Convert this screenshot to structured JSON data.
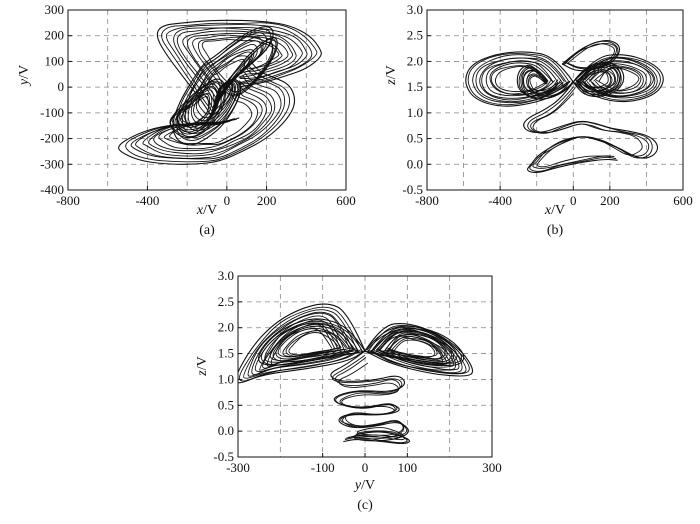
{
  "chart_data": [
    {
      "type": "line",
      "caption": "(a)",
      "xlabel": "x/V",
      "ylabel": "y/V",
      "xlim": [
        -800,
        600
      ],
      "ylim": [
        -400,
        300
      ],
      "xticks": [
        -800,
        -400,
        0,
        200,
        600
      ],
      "yticks": [
        -400,
        -300,
        -200,
        -100,
        0,
        100,
        200,
        300
      ],
      "xgrid": [
        -600,
        -400,
        -200,
        0,
        200,
        400,
        600
      ],
      "grid": true,
      "series": [
        {
          "x": [
            -80,
            -50,
            20,
            120,
            220,
            240,
            200,
            120,
            20,
            -60,
            -120,
            -180,
            -240,
            -280,
            -250,
            -180,
            -100,
            -20,
            40,
            80,
            40,
            -40,
            -80
          ],
          "y": [
            -110,
            -60,
            20,
            90,
            160,
            220,
            240,
            220,
            170,
            120,
            90,
            20,
            -60,
            -150,
            -210,
            -230,
            -200,
            -150,
            -80,
            0,
            40,
            0,
            -110
          ]
        },
        {
          "x": [
            120,
            160,
            230,
            320,
            350,
            300,
            200,
            80,
            -40,
            -160,
            -280,
            -420,
            -520,
            -560,
            -450,
            -320,
            -150,
            -20,
            60
          ],
          "y": [
            100,
            60,
            40,
            10,
            -60,
            -130,
            -200,
            -250,
            -290,
            -300,
            -300,
            -290,
            -260,
            -230,
            -180,
            -150,
            -140,
            -140,
            -120
          ]
        },
        {
          "x": [
            -80,
            -120,
            -200,
            -300,
            -360,
            -330,
            -220,
            -80,
            80,
            200,
            320,
            420,
            470,
            480,
            400,
            280,
            200,
            120,
            60
          ],
          "y": [
            -110,
            -60,
            20,
            120,
            200,
            240,
            250,
            260,
            260,
            255,
            240,
            200,
            150,
            120,
            70,
            40,
            20,
            10,
            0
          ]
        },
        {
          "x": [
            -260,
            -190,
            -110,
            -40,
            0,
            -20,
            -100,
            -180,
            -240,
            -280,
            -290,
            -260
          ],
          "y": [
            -100,
            -40,
            10,
            40,
            0,
            -90,
            -170,
            -200,
            -190,
            -160,
            -130,
            -100
          ]
        },
        {
          "x": [
            0,
            60,
            140,
            230,
            260,
            240,
            170,
            90,
            30,
            -20,
            -10,
            0
          ],
          "y": [
            20,
            80,
            150,
            200,
            180,
            120,
            40,
            -20,
            -40,
            -10,
            10,
            20
          ]
        }
      ]
    },
    {
      "type": "line",
      "caption": "(b)",
      "xlabel": "x/V",
      "ylabel": "z/V",
      "xlim": [
        -800,
        600
      ],
      "ylim": [
        -0.5,
        3.0
      ],
      "xticks": [
        -800,
        -400,
        0,
        200,
        600
      ],
      "yticks": [
        -0.5,
        0.0,
        0.5,
        1.0,
        1.5,
        2.0,
        2.5,
        3.0
      ],
      "xgrid": [
        -600,
        -400,
        -200,
        0,
        200,
        400,
        600
      ],
      "grid": true,
      "series": [
        {
          "x": [
            -140,
            -220,
            -280,
            -310,
            -300,
            -240,
            -160,
            -80,
            -20,
            0
          ],
          "y": [
            1.6,
            1.95,
            1.9,
            1.7,
            1.45,
            1.3,
            1.25,
            1.35,
            1.5,
            1.6
          ]
        },
        {
          "x": [
            0,
            30,
            100,
            200,
            270,
            280,
            230,
            140,
            60,
            20,
            0
          ],
          "y": [
            1.6,
            1.75,
            1.95,
            2.0,
            1.85,
            1.6,
            1.4,
            1.3,
            1.35,
            1.5,
            1.6
          ]
        },
        {
          "x": [
            0,
            -100,
            -260,
            -420,
            -560,
            -600,
            -540,
            -380,
            -200,
            -60,
            0
          ],
          "y": [
            1.6,
            2.1,
            2.2,
            2.15,
            1.95,
            1.6,
            1.25,
            1.1,
            1.2,
            1.4,
            1.6
          ]
        },
        {
          "x": [
            0,
            120,
            280,
            420,
            500,
            480,
            380,
            220,
            60,
            0
          ],
          "y": [
            1.6,
            2.1,
            2.15,
            2.0,
            1.75,
            1.45,
            1.25,
            1.2,
            1.4,
            1.6
          ]
        },
        {
          "x": [
            0,
            -60,
            -160,
            -250,
            -280,
            -240,
            -160,
            -60,
            40,
            120,
            200,
            300,
            420,
            470,
            440,
            360,
            260,
            140,
            40,
            -60,
            -140,
            -200,
            -230,
            -260,
            -200,
            -80,
            60,
            180,
            240
          ],
          "y": [
            1.6,
            1.3,
            1.05,
            0.9,
            0.75,
            0.62,
            0.62,
            0.75,
            0.85,
            0.8,
            0.7,
            0.65,
            0.55,
            0.35,
            0.15,
            0.1,
            0.3,
            0.5,
            0.55,
            0.45,
            0.3,
            0.15,
            0.0,
            -0.12,
            -0.18,
            -0.05,
            0.05,
            0.1,
            0.08
          ]
        },
        {
          "x": [
            -60,
            20,
            120,
            200,
            260,
            240,
            140,
            20,
            -60
          ],
          "y": [
            1.95,
            2.2,
            2.38,
            2.42,
            2.3,
            2.05,
            1.85,
            1.8,
            1.95
          ]
        }
      ]
    },
    {
      "type": "line",
      "caption": "(c)",
      "xlabel": "y/V",
      "ylabel": "z/V",
      "xlim": [
        -300,
        300
      ],
      "ylim": [
        -0.5,
        3.0
      ],
      "xticks": [
        -300,
        -100,
        0,
        100,
        300
      ],
      "yticks": [
        -0.5,
        0.0,
        0.5,
        1.0,
        1.5,
        2.0,
        2.5,
        3.0
      ],
      "xgrid": [
        -300,
        -200,
        -100,
        0,
        100,
        200,
        300
      ],
      "grid": true,
      "series": [
        {
          "x": [
            0,
            -20,
            -60,
            -120,
            -180,
            -230,
            -260,
            -220,
            -140,
            -60,
            0
          ],
          "y": [
            1.55,
            1.8,
            2.1,
            2.2,
            2.05,
            1.75,
            1.35,
            1.25,
            1.35,
            1.45,
            1.55
          ]
        },
        {
          "x": [
            0,
            30,
            80,
            140,
            200,
            240,
            220,
            150,
            80,
            20,
            0
          ],
          "y": [
            1.55,
            1.85,
            2.05,
            2.0,
            1.8,
            1.45,
            1.25,
            1.3,
            1.4,
            1.5,
            1.55
          ]
        },
        {
          "x": [
            0,
            -40,
            -90,
            -160,
            -220,
            -270,
            -310,
            -300,
            -240,
            -140,
            -40,
            0
          ],
          "y": [
            1.55,
            2.3,
            2.5,
            2.35,
            2.05,
            1.6,
            1.0,
            0.9,
            1.1,
            1.2,
            1.35,
            1.55
          ]
        },
        {
          "x": [
            0,
            40,
            100,
            170,
            230,
            260,
            240,
            160,
            60,
            0
          ],
          "y": [
            1.55,
            2.05,
            2.1,
            1.9,
            1.55,
            1.15,
            1.05,
            1.1,
            1.3,
            1.55
          ]
        },
        {
          "x": [
            0,
            -40,
            -90,
            -60,
            20,
            80,
            100,
            60,
            -20,
            -80,
            -60,
            0,
            60,
            90,
            40,
            -40,
            -70,
            -30,
            30,
            80,
            110,
            80,
            20,
            -30,
            -20,
            40,
            90,
            110,
            90,
            40,
            -20,
            -50
          ],
          "y": [
            1.55,
            1.3,
            1.1,
            0.95,
            0.98,
            1.1,
            0.9,
            0.75,
            0.8,
            0.65,
            0.5,
            0.45,
            0.55,
            0.4,
            0.3,
            0.35,
            0.2,
            0.05,
            0.1,
            0.2,
            0.0,
            -0.15,
            -0.2,
            -0.15,
            -0.05,
            0.0,
            -0.1,
            -0.2,
            -0.25,
            -0.2,
            -0.15,
            -0.2
          ]
        }
      ]
    }
  ]
}
